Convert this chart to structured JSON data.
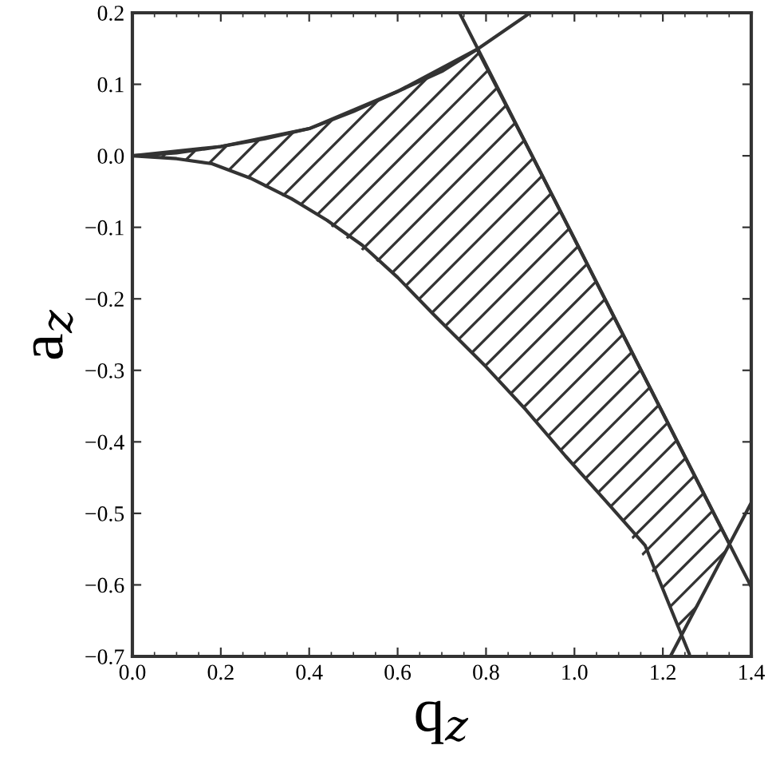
{
  "chart_data": {
    "type": "line",
    "xlabel": "q$_{z}$",
    "ylabel": "a$_{z}$",
    "xlim": [
      0,
      1.4
    ],
    "ylim": [
      -0.7,
      0.2
    ],
    "xticks": [
      {
        "value": 0,
        "label": "0.0"
      },
      {
        "value": 0.2,
        "label": "0.2"
      },
      {
        "value": 0.4,
        "label": "0.4"
      },
      {
        "value": 0.6,
        "label": "0.6"
      },
      {
        "value": 0.8,
        "label": "0.8"
      },
      {
        "value": 1.0,
        "label": "1.0"
      },
      {
        "value": 1.2,
        "label": "1.2"
      },
      {
        "value": 1.4,
        "label": "1.4"
      }
    ],
    "yticks": [
      {
        "value": 0.2,
        "label": "0.2"
      },
      {
        "value": 0.1,
        "label": "0.1"
      },
      {
        "value": 0,
        "label": "0.0"
      },
      {
        "value": -0.1,
        "label": "−0.1"
      },
      {
        "value": -0.2,
        "label": "−0.2"
      },
      {
        "value": -0.3,
        "label": "−0.3"
      },
      {
        "value": -0.4,
        "label": "−0.4"
      },
      {
        "value": -0.5,
        "label": "−0.5"
      },
      {
        "value": -0.6,
        "label": "−0.6"
      },
      {
        "value": -0.7,
        "label": "−0.7"
      }
    ],
    "grid": false,
    "legend": false,
    "marker": "none",
    "line_style": "solid",
    "series": [
      {
        "color": "#333333",
        "x": [
          0,
          0.1,
          0.2,
          0.3,
          0.4,
          0.5,
          0.6,
          0.7,
          0.78,
          0.9
        ],
        "values": [
          0,
          0.004,
          0.013,
          0.024,
          0.038,
          0.062,
          0.09,
          0.118,
          0.149,
          0.2
        ]
      },
      {
        "color": "#333333",
        "x": [
          0,
          0.1,
          0.18,
          0.27,
          0.36,
          0.44,
          0.52,
          0.6,
          0.68,
          0.8,
          0.89,
          0.98,
          1.07,
          1.16,
          1.26
        ],
        "values": [
          0,
          -0.004,
          -0.011,
          -0.032,
          -0.06,
          -0.09,
          -0.125,
          -0.17,
          -0.221,
          -0.295,
          -0.355,
          -0.42,
          -0.482,
          -0.545,
          -0.697
        ]
      },
      {
        "color": "#333333",
        "x": [
          0.74,
          1.4
        ],
        "values": [
          0.2,
          -0.603
        ]
      },
      {
        "color": "#333333",
        "x": [
          1.217,
          1.4
        ],
        "values": [
          -0.7,
          -0.485
        ]
      },
      {
        "color": "#333333",
        "x": [
          0,
          0.2,
          0.4,
          0.6,
          0.78,
          0.9,
          1.0,
          1.1,
          1.2,
          1.245,
          1.35
        ],
        "values": [
          0,
          0.013,
          0.038,
          0.09,
          0.149,
          0.005,
          -0.116,
          -0.238,
          -0.36,
          -0.415,
          -0.542
        ],
        "upper": [
          0,
          0.013,
          0.038,
          0.09,
          0.149,
          0.005,
          -0.116,
          -0.238,
          -0.36,
          -0.415,
          -0.542
        ],
        "lower": [
          0,
          -0.013,
          -0.075,
          -0.17,
          -0.283,
          -0.362,
          -0.434,
          -0.503,
          -0.606,
          -0.674,
          -0.542
        ]
      }
    ]
  }
}
